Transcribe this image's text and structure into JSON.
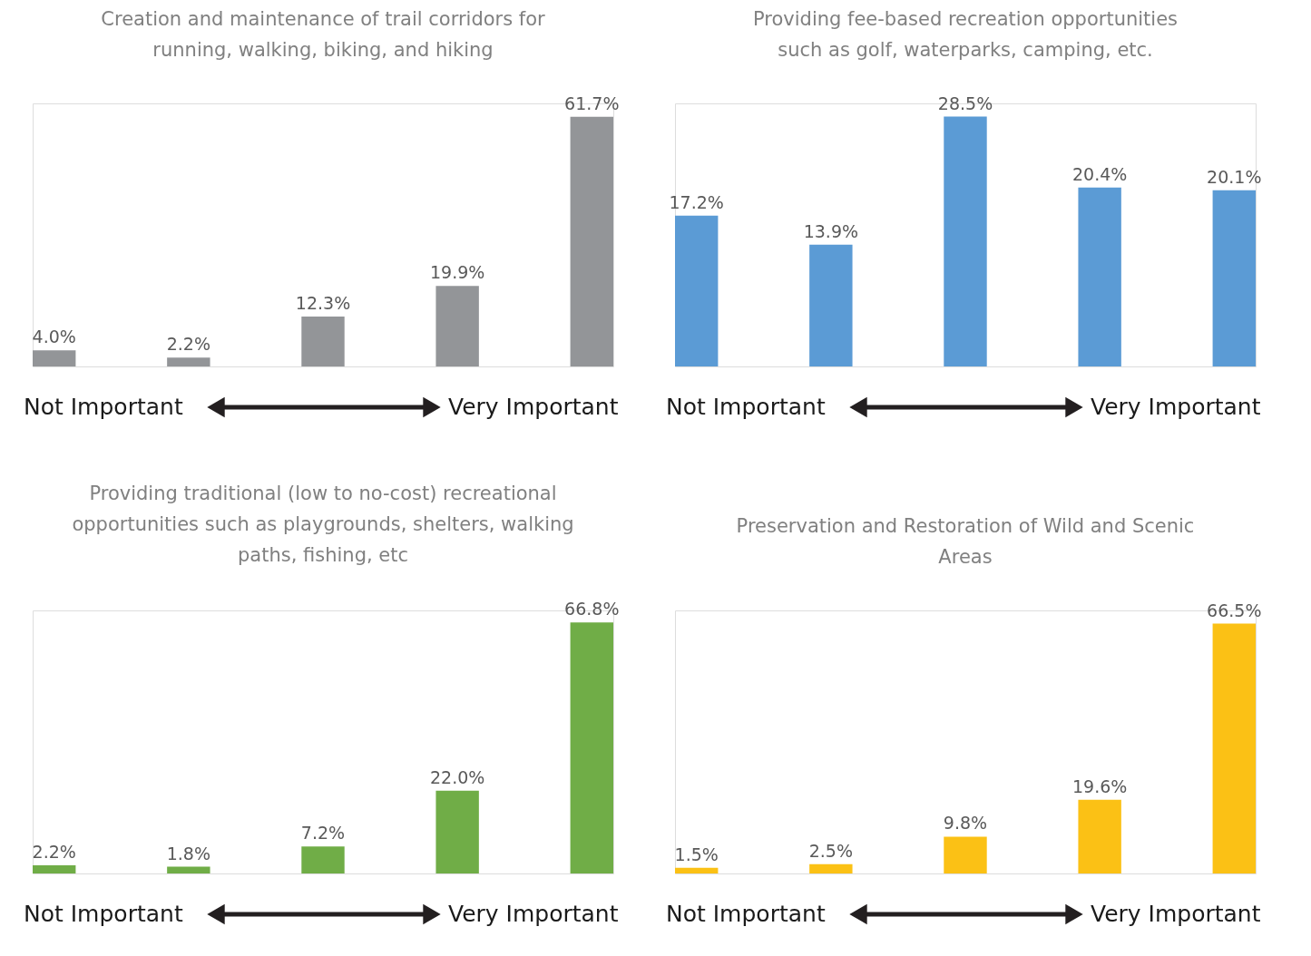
{
  "chart_data": [
    {
      "type": "bar",
      "title": "Creation and maintenance of trail corridors for\nrunning, walking, biking, and hiking",
      "categories": [
        null,
        null,
        null,
        null,
        null
      ],
      "values": [
        4.0,
        2.2,
        12.3,
        19.9,
        61.7
      ],
      "value_labels": [
        "4.0%",
        "2.2%",
        "12.3%",
        "19.9%",
        "61.7%"
      ],
      "color": "#939598",
      "annotations": [
        "Not Important",
        "Very Important"
      ]
    },
    {
      "type": "bar",
      "title": "Providing fee-based recreation opportunities\nsuch as golf, waterparks, camping, etc.",
      "categories": [
        null,
        null,
        null,
        null,
        null
      ],
      "values": [
        17.2,
        13.9,
        28.5,
        20.4,
        20.1
      ],
      "value_labels": [
        "17.2%",
        "13.9%",
        "28.5%",
        "20.4%",
        "20.1%"
      ],
      "color": "#5b9bd5",
      "annotations": [
        "Not Important",
        "Very Important"
      ]
    },
    {
      "type": "bar",
      "title": "Providing traditional (low to no-cost) recreational\nopportunities such as playgrounds, shelters, walking\npaths, fishing, etc",
      "categories": [
        null,
        null,
        null,
        null,
        null
      ],
      "values": [
        2.2,
        1.8,
        7.2,
        22.0,
        66.8
      ],
      "value_labels": [
        "2.2%",
        "1.8%",
        "7.2%",
        "22.0%",
        "66.8%"
      ],
      "color": "#70ad47",
      "annotations": [
        "Not Important",
        "Very Important"
      ]
    },
    {
      "type": "bar",
      "title": "Preservation and Restoration of Wild and Scenic\nAreas",
      "categories": [
        null,
        null,
        null,
        null,
        null
      ],
      "values": [
        1.5,
        2.5,
        9.8,
        19.6,
        66.5
      ],
      "value_labels": [
        "1.5%",
        "2.5%",
        "9.8%",
        "19.6%",
        "66.5%"
      ],
      "color": "#fbc115",
      "annotations": [
        "Not Important",
        "Very Important"
      ]
    }
  ]
}
